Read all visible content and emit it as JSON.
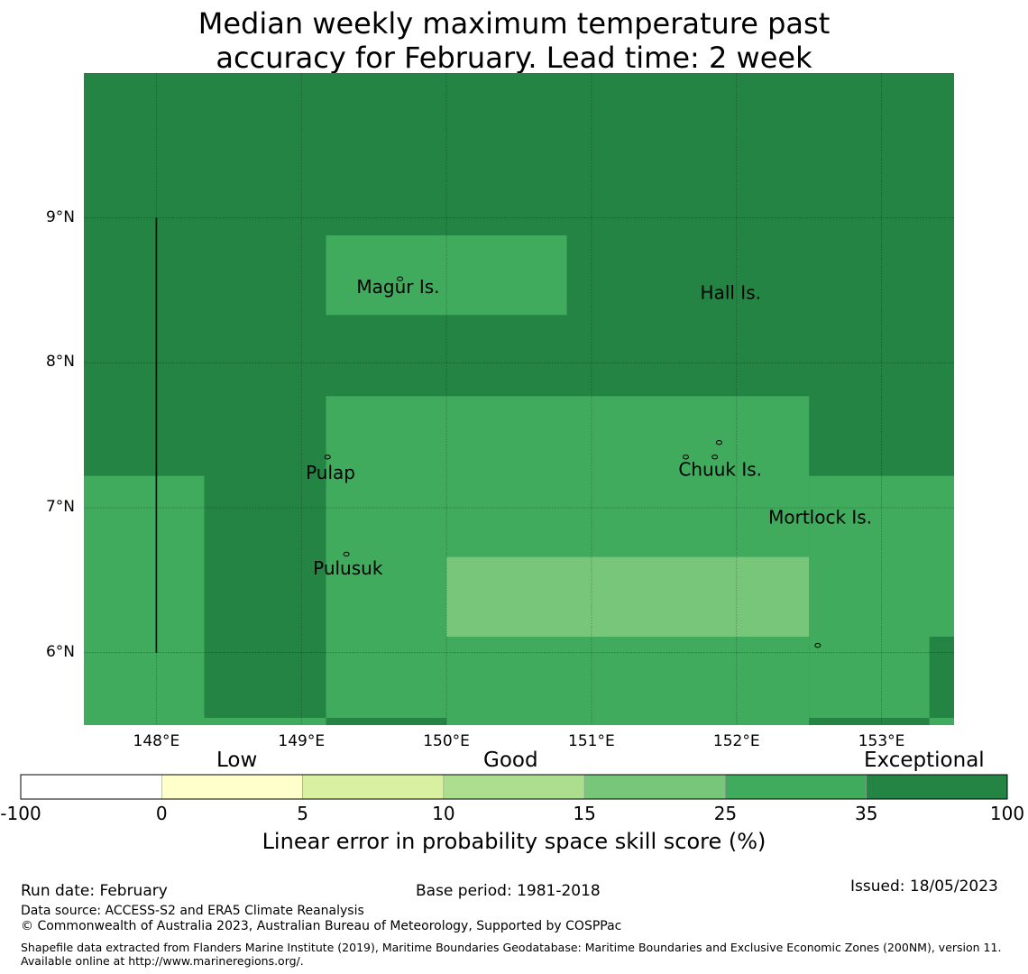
{
  "title": {
    "line1": "Median weekly maximum temperature past",
    "line2": "accuracy for February. Lead time: 2 week"
  },
  "map": {
    "lon_range": [
      147.5,
      153.5
    ],
    "lat_range": [
      5.5,
      10.0
    ],
    "lon_ticks": [
      {
        "value": 148,
        "label": "148°E"
      },
      {
        "value": 149,
        "label": "149°E"
      },
      {
        "value": 150,
        "label": "150°E"
      },
      {
        "value": 151,
        "label": "151°E"
      },
      {
        "value": 152,
        "label": "152°E"
      },
      {
        "value": 153,
        "label": "153°E"
      }
    ],
    "lat_ticks": [
      {
        "value": 9,
        "label": "9°N"
      },
      {
        "value": 8,
        "label": "8°N"
      },
      {
        "value": 7,
        "label": "7°N"
      },
      {
        "value": 6,
        "label": "6°N"
      }
    ],
    "cells": [
      {
        "lon": [
          147.5,
          153.5
        ],
        "lat": [
          5.5,
          10.0
        ],
        "class": "exceptional"
      },
      {
        "lon": [
          147.5,
          148.33
        ],
        "lat": [
          5.55,
          7.22
        ],
        "class": "very-good"
      },
      {
        "lon": [
          149.17,
          150.83
        ],
        "lat": [
          8.33,
          8.88
        ],
        "class": "very-good"
      },
      {
        "lon": [
          149.17,
          152.5
        ],
        "lat": [
          5.55,
          7.77
        ],
        "class": "very-good"
      },
      {
        "lon": [
          152.5,
          153.5
        ],
        "lat": [
          5.55,
          7.22
        ],
        "class": "very-good"
      },
      {
        "lon": [
          150.0,
          152.5
        ],
        "lat": [
          6.11,
          6.66
        ],
        "class": "good"
      },
      {
        "lon": [
          153.33,
          153.5
        ],
        "lat": [
          5.55,
          6.11
        ],
        "class": "exceptional"
      },
      {
        "lon": [
          147.5,
          149.17
        ],
        "lat": [
          5.5,
          5.55
        ],
        "class": "very-good"
      },
      {
        "lon": [
          150.0,
          152.5
        ],
        "lat": [
          5.5,
          5.55
        ],
        "class": "very-good"
      },
      {
        "lon": [
          153.33,
          153.5
        ],
        "lat": [
          5.5,
          5.55
        ],
        "class": "very-good"
      }
    ],
    "boundary_line": {
      "lon": 148.0,
      "lat": [
        6.0,
        9.0
      ]
    },
    "places": [
      {
        "name": "Magur Is.",
        "lon": 149.38,
        "lat": 8.48
      },
      {
        "name": "Hall Is.",
        "lon": 151.75,
        "lat": 8.44
      },
      {
        "name": "Pulap",
        "lon": 149.03,
        "lat": 7.2
      },
      {
        "name": "Chuuk Is.",
        "lon": 151.6,
        "lat": 7.22
      },
      {
        "name": "Mortlock Is.",
        "lon": 152.22,
        "lat": 6.89
      },
      {
        "name": "Pulusuk",
        "lon": 149.08,
        "lat": 6.54
      }
    ],
    "islands": [
      {
        "lon": 149.68,
        "lat": 8.58
      },
      {
        "lon": 149.18,
        "lat": 7.35
      },
      {
        "lon": 149.31,
        "lat": 6.68
      },
      {
        "lon": 151.65,
        "lat": 7.35
      },
      {
        "lon": 151.85,
        "lat": 7.35
      },
      {
        "lon": 151.88,
        "lat": 7.45
      },
      {
        "lon": 152.56,
        "lat": 6.05
      }
    ]
  },
  "colorbar": {
    "categories": [
      {
        "label": "Low"
      },
      {
        "label": "Good"
      },
      {
        "label": "Exceptional"
      }
    ],
    "ticks": [
      "-100",
      "0",
      "5",
      "10",
      "15",
      "25",
      "35",
      "100"
    ],
    "colors": [
      "#ffffff",
      "#ffffcc",
      "#d9f0a3",
      "#addd8e",
      "#78c679",
      "#41ab5d",
      "#238443"
    ],
    "label": "Linear error in probability space skill score (%)"
  },
  "class_colors": {
    "good": "#78c679",
    "very-good": "#41ab5d",
    "exceptional": "#238443"
  },
  "footer": {
    "run_date": "Run date: February",
    "base_period": "Base period: 1981-2018",
    "issued": "Issued: 18/05/2023",
    "data_source": "Data source: ACCESS-S2 and ERA5 Climate Reanalysis",
    "copyright": "© Commonwealth of Australia 2023, Australian Bureau of Meteorology, Supported by COSPPac",
    "shapefile": "Shapefile data extracted from Flanders Marine Institute (2019), Maritime Boundaries Geodatabase: Maritime Boundaries and Exclusive Economic Zones (200NM), version 11. Available online at http://www.marineregions.org/."
  }
}
